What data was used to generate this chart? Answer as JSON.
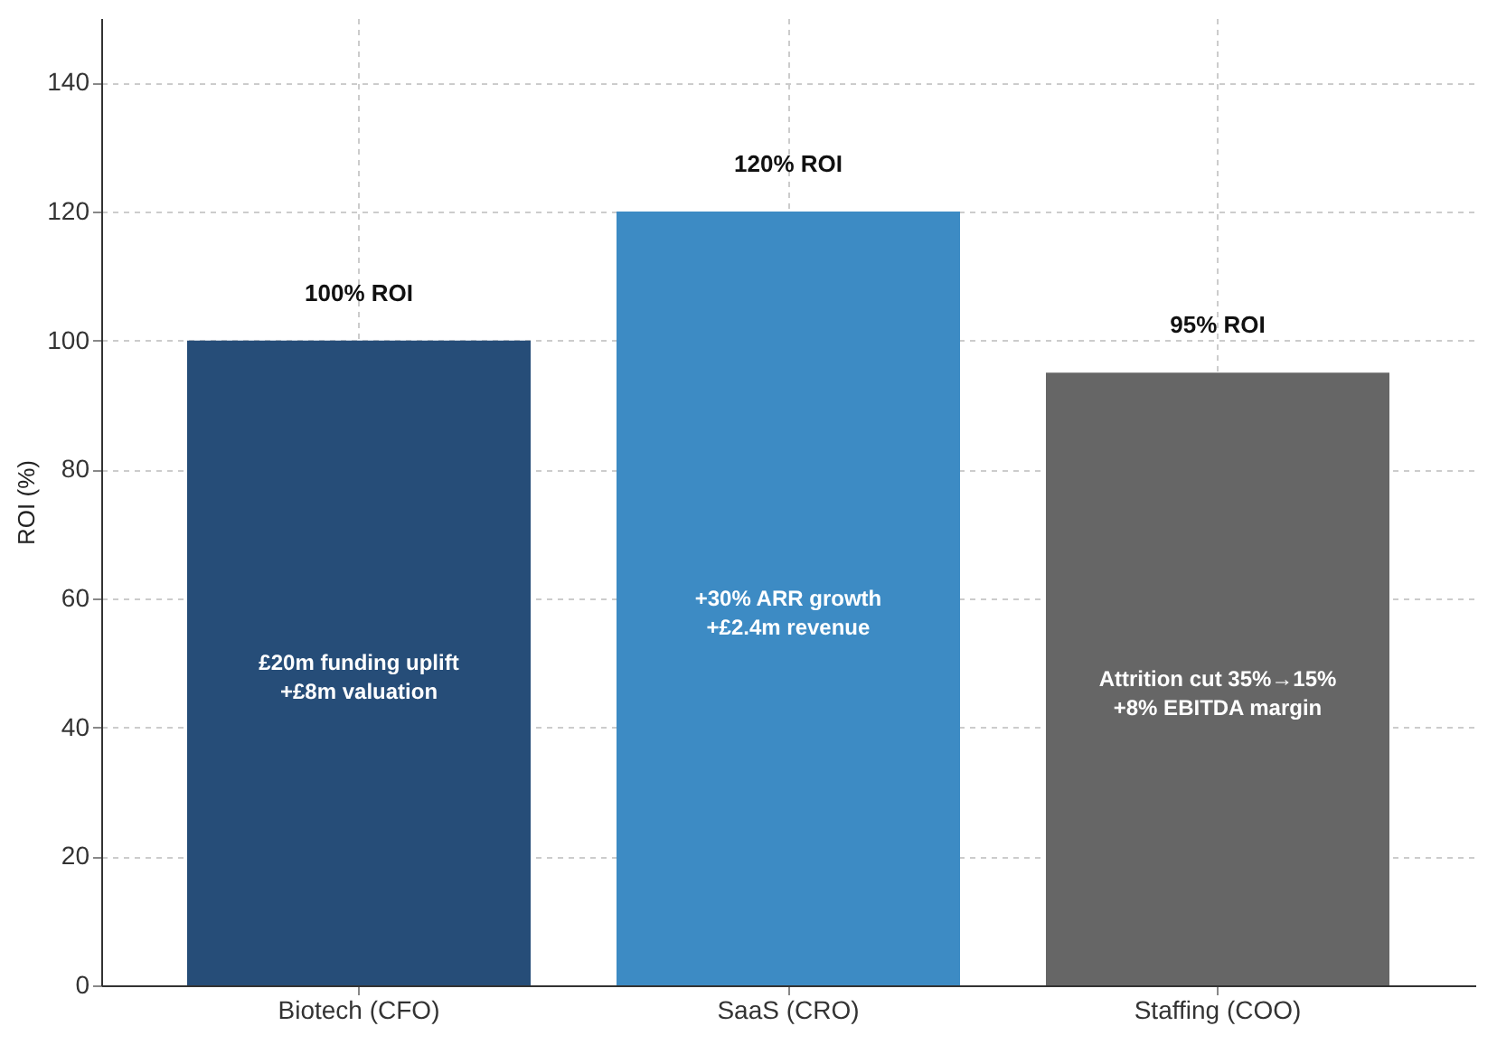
{
  "chart_data": {
    "type": "bar",
    "ylabel": "ROI (%)",
    "categories": [
      "Biotech (CFO)",
      "SaaS (CRO)",
      "Staffing (COO)"
    ],
    "values": [
      100,
      120,
      95
    ],
    "colors": [
      "#264d78",
      "#3d8bc4",
      "#666666"
    ],
    "value_labels": [
      "100% ROI",
      "120% ROI",
      "95% ROI"
    ],
    "annotations": [
      "£20m funding uplift\n+£8m valuation",
      "+30% ARR growth\n+£2.4m revenue",
      "Attrition cut 35%→15%\n+8% EBITDA margin"
    ],
    "ylim": [
      0,
      150
    ],
    "yticks": [
      0,
      20,
      40,
      60,
      80,
      100,
      120,
      140
    ],
    "grid": true
  }
}
